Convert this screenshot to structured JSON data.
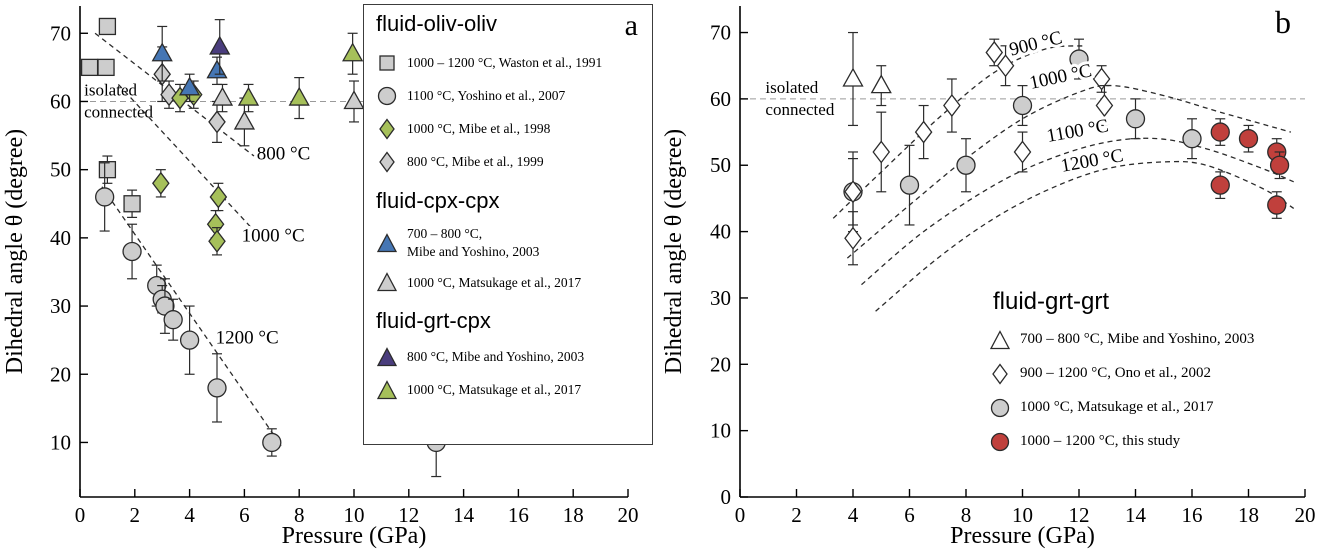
{
  "figure": {
    "background": "#ffffff"
  },
  "colors": {
    "gray": "#cdcdcd",
    "green": "#a6c05a",
    "blue": "#4576b4",
    "purple": "#4a3d7d",
    "red": "#c0403c",
    "white": "#ffffff",
    "edge": "#2b2b2b",
    "threshold_line": "#9a9a9a",
    "trend_line": "#2b2b2b"
  },
  "chart_data": [
    {
      "type": "scatter",
      "panel_label": "a",
      "xlabel": "Pressure (GPa)",
      "ylabel": "Dihedral angle θ (degree)",
      "xlim": [
        0,
        20
      ],
      "ylim": [
        2,
        74
      ],
      "xticks": [
        0,
        2,
        4,
        6,
        8,
        10,
        12,
        14,
        16,
        18,
        20
      ],
      "yticks": [
        10,
        20,
        30,
        40,
        50,
        60,
        70
      ],
      "grid": false,
      "threshold": {
        "y": 60,
        "label_above": "isolated",
        "label_below": "connected",
        "label_x": 0.15
      },
      "isotherm_labels": [
        {
          "text": "800 °C",
          "x": 6.45,
          "y": 51.5,
          "rot": 0
        },
        {
          "text": "1000 °C",
          "x": 5.9,
          "y": 39.5,
          "rot": 0
        },
        {
          "text": "1200 °C",
          "x": 4.95,
          "y": 24.5,
          "rot": 0
        }
      ],
      "trend_lines": [
        {
          "name": "800 °C",
          "points": [
            [
              0.55,
              70
            ],
            [
              6.35,
              52
            ]
          ]
        },
        {
          "name": "1000 °C",
          "points": [
            [
              1.4,
              62.5
            ],
            [
              6.25,
              41.5
            ]
          ]
        },
        {
          "name": "1200 °C",
          "points": [
            [
              0.8,
              47.5
            ],
            [
              7.35,
              9.5
            ]
          ]
        }
      ],
      "series": [
        {
          "name": "Waston et al., 1991",
          "group": "fluid-oliv-oliv",
          "temperature": "1000 – 1200 °C",
          "marker": "square",
          "fill": "#cdcdcd",
          "points": [
            [
              1,
              71,
              0
            ],
            [
              0.35,
              65,
              0
            ],
            [
              0.95,
              65,
              0
            ],
            [
              1,
              50,
              2
            ],
            [
              1.9,
              45,
              2
            ]
          ]
        },
        {
          "name": "Yoshino et al., 2007",
          "group": "fluid-oliv-oliv",
          "temperature": "1100 °C",
          "marker": "circle",
          "fill": "#cdcdcd",
          "points": [
            [
              0.9,
              46,
              5
            ],
            [
              1.9,
              38,
              4
            ],
            [
              2.8,
              33,
              3
            ],
            [
              3,
              31,
              2
            ],
            [
              3.1,
              30,
              4
            ],
            [
              3.4,
              28,
              3
            ],
            [
              4,
              25,
              5
            ],
            [
              5,
              18,
              5
            ],
            [
              7,
              10,
              2
            ],
            [
              13,
              10,
              5
            ]
          ]
        },
        {
          "name": "Mibe et al., 1999",
          "group": "fluid-oliv-oliv",
          "temperature": "800 °C",
          "marker": "diamond",
          "fill": "#cdcdcd",
          "points": [
            [
              3,
              64,
              4
            ],
            [
              3.25,
              61,
              2
            ],
            [
              5,
              57,
              3
            ]
          ]
        },
        {
          "name": "Mibe et al., 1998",
          "group": "fluid-oliv-oliv",
          "temperature": "1000 °C",
          "marker": "diamond",
          "fill": "#a6c05a",
          "points": [
            [
              2.95,
              48,
              2
            ],
            [
              3.65,
              60.5,
              2
            ],
            [
              4.15,
              61,
              2
            ],
            [
              5.05,
              46,
              2
            ],
            [
              4.95,
              42,
              2
            ],
            [
              5,
              39.5,
              2
            ]
          ]
        },
        {
          "name": "Matsukage et al., 2017",
          "group": "fluid-cpx-cpx",
          "temperature": "1000 °C",
          "marker": "triangle",
          "fill": "#cdcdcd",
          "points": [
            [
              5.2,
              60.5,
              2
            ],
            [
              6,
              57,
              3.5
            ],
            [
              10,
              60,
              3
            ]
          ]
        },
        {
          "name": "Matsukage et al., 2017",
          "group": "fluid-grt-cpx",
          "temperature": "1000 °C",
          "marker": "triangle",
          "fill": "#a6c05a",
          "points": [
            [
              6.15,
              60.5,
              2
            ],
            [
              8,
              60.5,
              3
            ],
            [
              9.95,
              67,
              3
            ]
          ]
        },
        {
          "name": "Mibe and Yoshino, 2003",
          "group": "fluid-cpx-cpx",
          "temperature": "700 – 800 °C",
          "marker": "triangle",
          "fill": "#4576b4",
          "points": [
            [
              3,
              67,
              4
            ],
            [
              4,
              62,
              2
            ],
            [
              5,
              64.5,
              2
            ]
          ]
        },
        {
          "name": "Mibe and Yoshino, 2003",
          "group": "fluid-grt-cpx",
          "temperature": "800 °C",
          "marker": "triangle",
          "fill": "#4a3d7d",
          "points": [
            [
              5.1,
              68,
              4
            ]
          ]
        }
      ],
      "legend": {
        "groups": [
          {
            "title": "fluid-oliv-oliv",
            "items": [
              {
                "marker": "square",
                "fill": "#cdcdcd",
                "text": "1000 – 1200 °C, Waston et al., 1991"
              },
              {
                "marker": "circle",
                "fill": "#cdcdcd",
                "text": "1100 °C, Yoshino et al., 2007"
              },
              {
                "marker": "diamond",
                "fill": "#a6c05a",
                "text": "1000 °C, Mibe et al., 1998"
              },
              {
                "marker": "diamond",
                "fill": "#cdcdcd",
                "text": "800 °C, Mibe et al., 1999"
              }
            ]
          },
          {
            "title": "fluid-cpx-cpx",
            "items": [
              {
                "marker": "triangle",
                "fill": "#4576b4",
                "text": "700 – 800 °C,",
                "text2": "Mibe and Yoshino, 2003"
              },
              {
                "marker": "triangle",
                "fill": "#cdcdcd",
                "text": "1000 °C, Matsukage et al., 2017"
              }
            ]
          },
          {
            "title": "fluid-grt-cpx",
            "items": [
              {
                "marker": "triangle",
                "fill": "#4a3d7d",
                "text": "800 °C, Mibe  and Yoshino, 2003"
              },
              {
                "marker": "triangle",
                "fill": "#a6c05a",
                "text": "1000 °C, Matsukage et al., 2017"
              }
            ]
          }
        ]
      }
    },
    {
      "type": "scatter",
      "panel_label": "b",
      "xlabel": "Pressure (GPa)",
      "ylabel": "Dihedral angle θ (degree)",
      "xlim": [
        0,
        20
      ],
      "ylim": [
        0,
        74
      ],
      "xticks": [
        0,
        2,
        4,
        6,
        8,
        10,
        12,
        14,
        16,
        18,
        20
      ],
      "yticks": [
        0,
        10,
        20,
        30,
        40,
        50,
        60,
        70
      ],
      "grid": false,
      "threshold": {
        "y": 60,
        "label_above": "isolated",
        "label_below": "connected",
        "label_x": 0.9
      },
      "isotherm_labels": [
        {
          "text": "900 °C",
          "x": 9.6,
          "y": 66.5,
          "rot": -14
        },
        {
          "text": "1000 °C",
          "x": 10.3,
          "y": 61.5,
          "rot": -12
        },
        {
          "text": "1100 °C",
          "x": 10.9,
          "y": 53.5,
          "rot": -10
        },
        {
          "text": "1200 °C",
          "x": 11.4,
          "y": 49,
          "rot": -10
        }
      ],
      "trend_lines": [
        {
          "name": "900 °C",
          "points": [
            [
              3.3,
              42
            ],
            [
              5,
              49
            ],
            [
              7,
              57
            ],
            [
              9,
              64
            ],
            [
              10.8,
              67.5
            ],
            [
              12.2,
              68
            ]
          ]
        },
        {
          "name": "1000 °C",
          "points": [
            [
              3.8,
              36
            ],
            [
              6,
              44
            ],
            [
              8,
              51
            ],
            [
              10,
              57
            ],
            [
              12,
              61
            ],
            [
              13.2,
              62
            ],
            [
              15,
              60.5
            ],
            [
              17,
              58
            ],
            [
              19.5,
              55
            ]
          ]
        },
        {
          "name": "1100 °C",
          "points": [
            [
              4.3,
              32
            ],
            [
              6.5,
              40
            ],
            [
              9,
              47
            ],
            [
              11,
              51
            ],
            [
              13,
              53.5
            ],
            [
              14.8,
              54
            ],
            [
              16.5,
              52.5
            ],
            [
              18.5,
              49.5
            ],
            [
              19.6,
              47.5
            ]
          ]
        },
        {
          "name": "1200 °C",
          "points": [
            [
              4.8,
              28
            ],
            [
              7,
              36
            ],
            [
              9,
              42
            ],
            [
              11,
              46.5
            ],
            [
              13,
              49.5
            ],
            [
              15,
              50.5
            ],
            [
              16.5,
              50
            ],
            [
              18.5,
              46.5
            ],
            [
              19.6,
              43.5
            ]
          ]
        }
      ],
      "series": [
        {
          "name": "Matsukage et al., 2017",
          "group": "fluid-grt-grt",
          "temperature": "1000 °C",
          "marker": "circle",
          "fill": "#cdcdcd",
          "points": [
            [
              4,
              46,
              5
            ],
            [
              6,
              47,
              6
            ],
            [
              8,
              50,
              4
            ],
            [
              10,
              59,
              3
            ],
            [
              12,
              66,
              3
            ],
            [
              14,
              57,
              3
            ],
            [
              16,
              54,
              3
            ]
          ]
        },
        {
          "name": "Ono et al., 2002",
          "group": "fluid-grt-grt",
          "temperature": "900 – 1200 °C",
          "marker": "diamond",
          "fill": "#ffffff",
          "points": [
            [
              4,
              46,
              6
            ],
            [
              4,
              39,
              4
            ],
            [
              5,
              52,
              6
            ],
            [
              6.5,
              55,
              4
            ],
            [
              7.5,
              59,
              4
            ],
            [
              9,
              67,
              2
            ],
            [
              9.4,
              65,
              3
            ],
            [
              10,
              52,
              3
            ],
            [
              12.8,
              63,
              2
            ],
            [
              12.9,
              59,
              3
            ]
          ]
        },
        {
          "name": "Mibe and Yoshino, 2003",
          "group": "fluid-grt-grt",
          "temperature": "700 – 800 °C",
          "marker": "triangle",
          "fill": "#ffffff",
          "points": [
            [
              4,
              63,
              7
            ],
            [
              5,
              62,
              3
            ]
          ]
        },
        {
          "name": "this study",
          "group": "fluid-grt-grt",
          "temperature": "1000 – 1200 °C",
          "marker": "circle",
          "fill": "#c0403c",
          "points": [
            [
              17,
              55,
              2
            ],
            [
              17,
              47,
              2
            ],
            [
              18,
              54,
              2
            ],
            [
              19,
              52,
              2
            ],
            [
              19.1,
              50,
              2
            ],
            [
              19,
              44,
              2
            ]
          ]
        }
      ],
      "legend": {
        "title": "fluid-grt-grt",
        "items": [
          {
            "marker": "triangle",
            "fill": "#ffffff",
            "text": "700 – 800 °C, Mibe and Yoshino, 2003"
          },
          {
            "marker": "diamond",
            "fill": "#ffffff",
            "text": "900 – 1200 °C, Ono et al., 2002"
          },
          {
            "marker": "circle",
            "fill": "#cdcdcd",
            "text": "1000 °C, Matsukage et al., 2017"
          },
          {
            "marker": "circle",
            "fill": "#c0403c",
            "text": "1000 – 1200 °C, this study"
          }
        ]
      }
    }
  ]
}
